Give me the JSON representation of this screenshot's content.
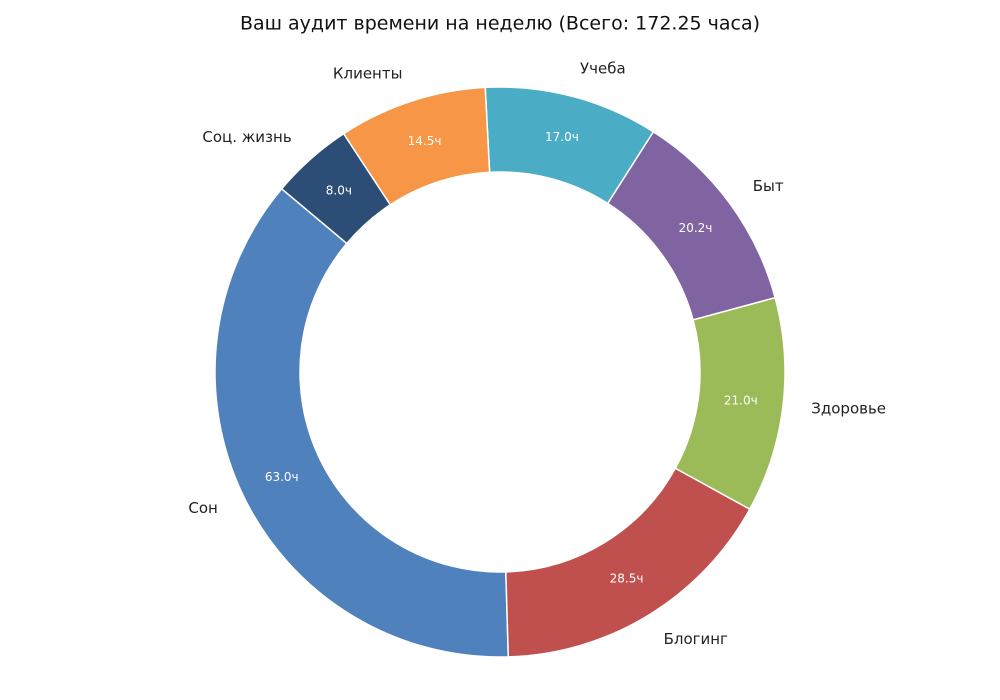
{
  "chart_data": {
    "type": "pie",
    "title": "Ваш аудит времени на неделю (Всего: 172.25 часа)",
    "categories": [
      "Сон",
      "Блогинг",
      "Здоровье",
      "Быт",
      "Учеба",
      "Клиенты",
      "Соц. жизнь"
    ],
    "values": [
      63.0,
      28.5,
      21.0,
      20.25,
      17.0,
      14.5,
      8.0
    ],
    "value_labels": [
      "63.0ч",
      "28.5ч",
      "21.0ч",
      "20.2ч",
      "17.0ч",
      "14.5ч",
      "8.0ч"
    ],
    "colors": [
      "#4f81bd",
      "#c0504d",
      "#9bbb59",
      "#8064a2",
      "#4bacc6",
      "#f79646",
      "#2c4d75"
    ]
  }
}
